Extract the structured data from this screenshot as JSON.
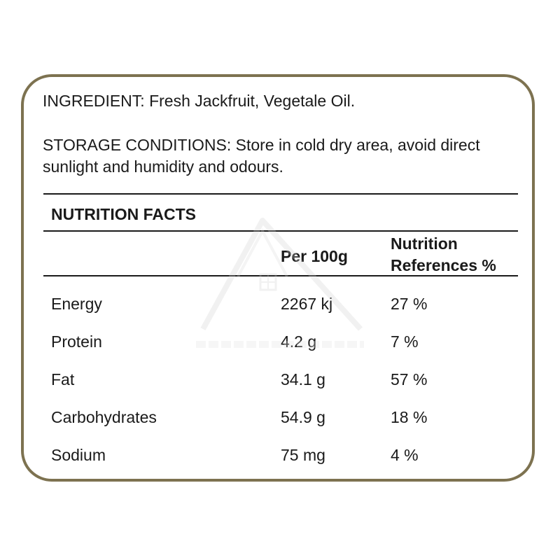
{
  "label": {
    "ingredient": "INGREDIENT: Fresh Jackfruit, Vegetale Oil.",
    "storage": "STORAGE CONDITIONS: Store in cold dry area, avoid direct sunlight and humidity and odours."
  },
  "nutrition": {
    "title": "NUTRITION FACTS",
    "headers": {
      "per": "Per 100g",
      "reference_line1": "Nutrition",
      "reference_line2": "References %"
    },
    "rows": [
      {
        "name": "Energy",
        "per": "2267 kj",
        "ref": "27 %"
      },
      {
        "name": "Protein",
        "per": "4.2 g",
        "ref": "7 %"
      },
      {
        "name": "Fat",
        "per": "34.1 g",
        "ref": "57 %"
      },
      {
        "name": "Carbohydrates",
        "per": "54.9 g",
        "ref": "18 %"
      },
      {
        "name": "Sodium",
        "per": "75 mg",
        "ref": "4 %"
      }
    ]
  },
  "colors": {
    "border": "#7d7250",
    "text": "#1a1a1a"
  }
}
